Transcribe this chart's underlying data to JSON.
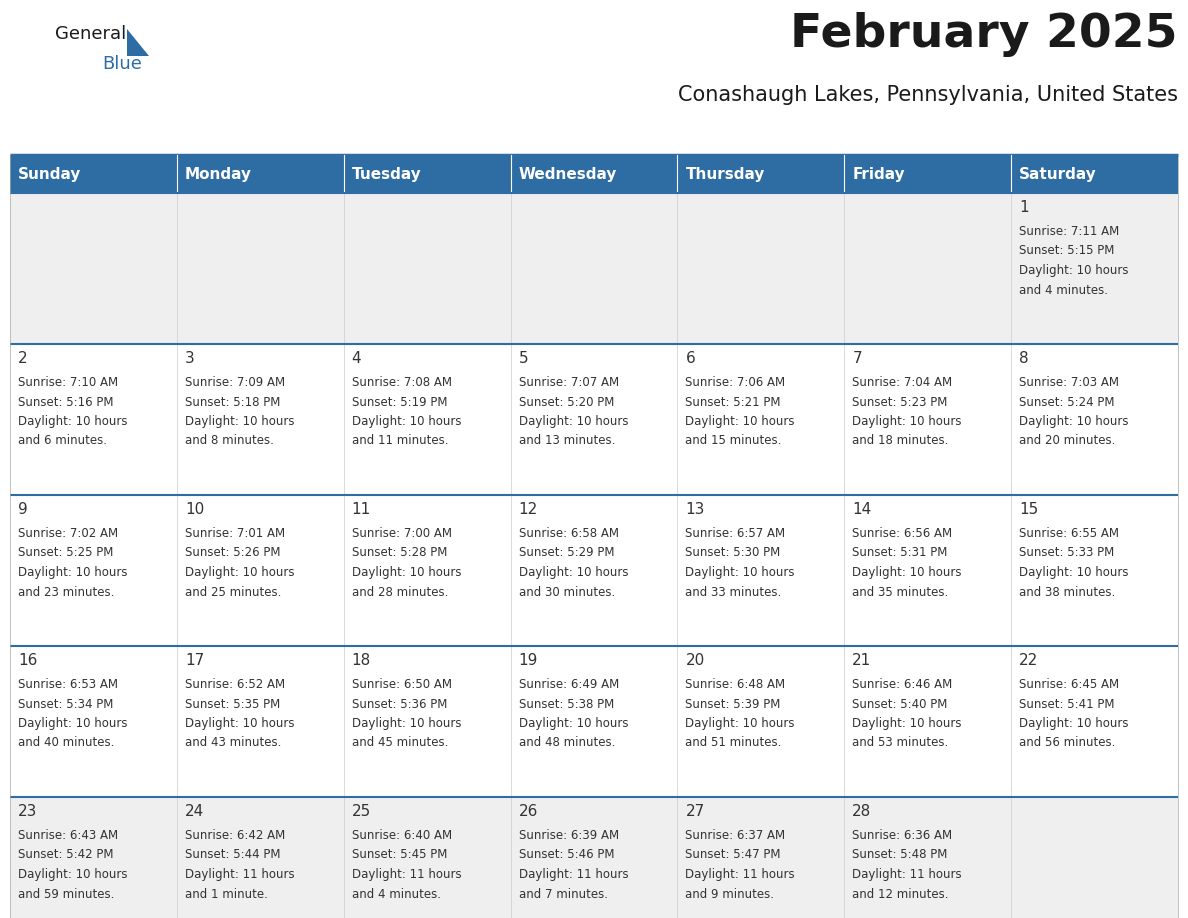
{
  "title": "February 2025",
  "subtitle": "Conashaugh Lakes, Pennsylvania, United States",
  "header_bg": "#2E6DA4",
  "header_text_color": "#FFFFFF",
  "cell_bg_gray": "#EFEFEF",
  "cell_bg_white": "#FFFFFF",
  "border_color": "#2E6DA4",
  "text_color": "#333333",
  "days_of_week": [
    "Sunday",
    "Monday",
    "Tuesday",
    "Wednesday",
    "Thursday",
    "Friday",
    "Saturday"
  ],
  "calendar_data": [
    [
      null,
      null,
      null,
      null,
      null,
      null,
      {
        "day": "1",
        "sunrise": "7:11 AM",
        "sunset": "5:15 PM",
        "daylight": "10 hours\nand 4 minutes."
      }
    ],
    [
      {
        "day": "2",
        "sunrise": "7:10 AM",
        "sunset": "5:16 PM",
        "daylight": "10 hours\nand 6 minutes."
      },
      {
        "day": "3",
        "sunrise": "7:09 AM",
        "sunset": "5:18 PM",
        "daylight": "10 hours\nand 8 minutes."
      },
      {
        "day": "4",
        "sunrise": "7:08 AM",
        "sunset": "5:19 PM",
        "daylight": "10 hours\nand 11 minutes."
      },
      {
        "day": "5",
        "sunrise": "7:07 AM",
        "sunset": "5:20 PM",
        "daylight": "10 hours\nand 13 minutes."
      },
      {
        "day": "6",
        "sunrise": "7:06 AM",
        "sunset": "5:21 PM",
        "daylight": "10 hours\nand 15 minutes."
      },
      {
        "day": "7",
        "sunrise": "7:04 AM",
        "sunset": "5:23 PM",
        "daylight": "10 hours\nand 18 minutes."
      },
      {
        "day": "8",
        "sunrise": "7:03 AM",
        "sunset": "5:24 PM",
        "daylight": "10 hours\nand 20 minutes."
      }
    ],
    [
      {
        "day": "9",
        "sunrise": "7:02 AM",
        "sunset": "5:25 PM",
        "daylight": "10 hours\nand 23 minutes."
      },
      {
        "day": "10",
        "sunrise": "7:01 AM",
        "sunset": "5:26 PM",
        "daylight": "10 hours\nand 25 minutes."
      },
      {
        "day": "11",
        "sunrise": "7:00 AM",
        "sunset": "5:28 PM",
        "daylight": "10 hours\nand 28 minutes."
      },
      {
        "day": "12",
        "sunrise": "6:58 AM",
        "sunset": "5:29 PM",
        "daylight": "10 hours\nand 30 minutes."
      },
      {
        "day": "13",
        "sunrise": "6:57 AM",
        "sunset": "5:30 PM",
        "daylight": "10 hours\nand 33 minutes."
      },
      {
        "day": "14",
        "sunrise": "6:56 AM",
        "sunset": "5:31 PM",
        "daylight": "10 hours\nand 35 minutes."
      },
      {
        "day": "15",
        "sunrise": "6:55 AM",
        "sunset": "5:33 PM",
        "daylight": "10 hours\nand 38 minutes."
      }
    ],
    [
      {
        "day": "16",
        "sunrise": "6:53 AM",
        "sunset": "5:34 PM",
        "daylight": "10 hours\nand 40 minutes."
      },
      {
        "day": "17",
        "sunrise": "6:52 AM",
        "sunset": "5:35 PM",
        "daylight": "10 hours\nand 43 minutes."
      },
      {
        "day": "18",
        "sunrise": "6:50 AM",
        "sunset": "5:36 PM",
        "daylight": "10 hours\nand 45 minutes."
      },
      {
        "day": "19",
        "sunrise": "6:49 AM",
        "sunset": "5:38 PM",
        "daylight": "10 hours\nand 48 minutes."
      },
      {
        "day": "20",
        "sunrise": "6:48 AM",
        "sunset": "5:39 PM",
        "daylight": "10 hours\nand 51 minutes."
      },
      {
        "day": "21",
        "sunrise": "6:46 AM",
        "sunset": "5:40 PM",
        "daylight": "10 hours\nand 53 minutes."
      },
      {
        "day": "22",
        "sunrise": "6:45 AM",
        "sunset": "5:41 PM",
        "daylight": "10 hours\nand 56 minutes."
      }
    ],
    [
      {
        "day": "23",
        "sunrise": "6:43 AM",
        "sunset": "5:42 PM",
        "daylight": "10 hours\nand 59 minutes."
      },
      {
        "day": "24",
        "sunrise": "6:42 AM",
        "sunset": "5:44 PM",
        "daylight": "11 hours\nand 1 minute."
      },
      {
        "day": "25",
        "sunrise": "6:40 AM",
        "sunset": "5:45 PM",
        "daylight": "11 hours\nand 4 minutes."
      },
      {
        "day": "26",
        "sunrise": "6:39 AM",
        "sunset": "5:46 PM",
        "daylight": "11 hours\nand 7 minutes."
      },
      {
        "day": "27",
        "sunrise": "6:37 AM",
        "sunset": "5:47 PM",
        "daylight": "11 hours\nand 9 minutes."
      },
      {
        "day": "28",
        "sunrise": "6:36 AM",
        "sunset": "5:48 PM",
        "daylight": "11 hours\nand 12 minutes."
      },
      null
    ]
  ],
  "row_bg_colors": [
    "#EFEFEF",
    "#FFFFFF",
    "#FFFFFF",
    "#FFFFFF",
    "#EFEFEF"
  ]
}
